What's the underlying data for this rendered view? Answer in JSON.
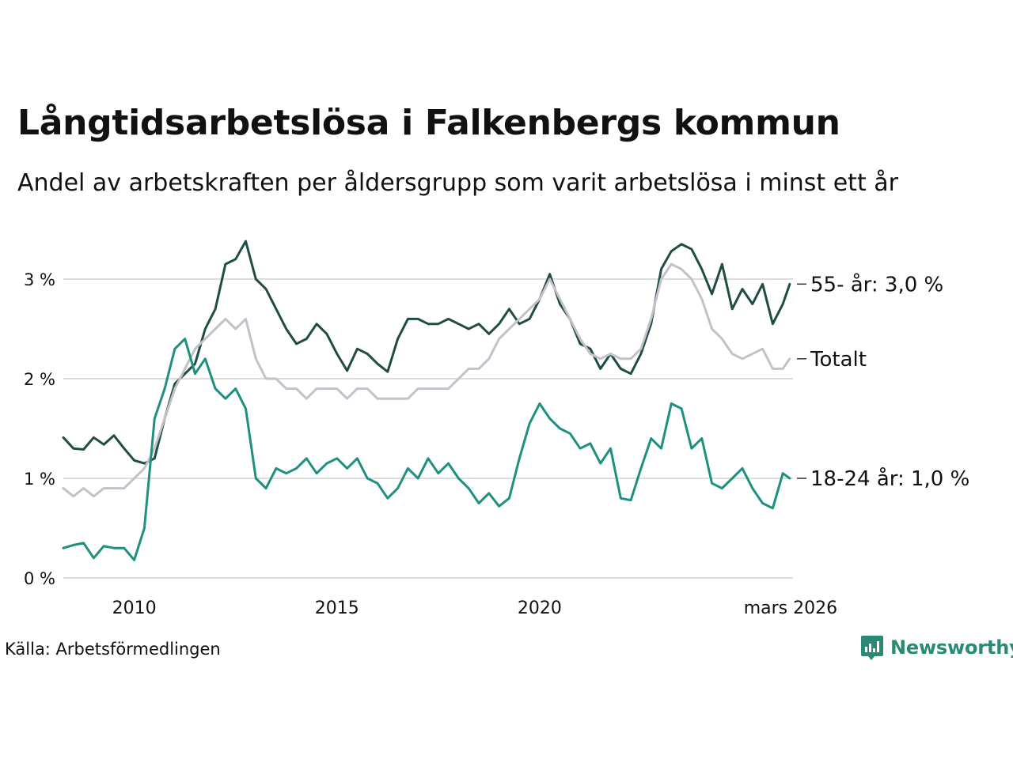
{
  "title": "Långtidsarbetslösa i Falkenbergs kommun",
  "subtitle": "Andel av arbetskraften per åldersgrupp som varit arbetslösa i minst ett år",
  "source": "Källa: Arbetsförmedlingen",
  "brand": {
    "name": "Newsworthy",
    "icon": "newsworthy-logo-icon",
    "color": "#2a8a75"
  },
  "chart_data": {
    "type": "line",
    "title": "Långtidsarbetslösa i Falkenbergs kommun",
    "xlabel": "",
    "ylabel": "",
    "xlim": [
      2008.25,
      2026.25
    ],
    "ylim": [
      0,
      3.5
    ],
    "grid": true,
    "y_ticks": [
      0,
      1,
      2,
      3
    ],
    "y_tick_labels": [
      "0 %",
      "1 %",
      "2 %",
      "3 %"
    ],
    "x_ticks": [
      2010,
      2015,
      2020,
      2026.17
    ],
    "x_tick_labels": [
      "2010",
      "2015",
      "2020",
      "mars 2026"
    ],
    "series": [
      {
        "name": "55- år",
        "end_label": "55- år: 3,0 %",
        "color": "#1f4d45",
        "points": [
          [
            2008.25,
            1.41
          ],
          [
            2008.5,
            1.3
          ],
          [
            2008.75,
            1.29
          ],
          [
            2009,
            1.41
          ],
          [
            2009.25,
            1.34
          ],
          [
            2009.5,
            1.43
          ],
          [
            2009.75,
            1.3
          ],
          [
            2010,
            1.18
          ],
          [
            2010.25,
            1.15
          ],
          [
            2010.5,
            1.2
          ],
          [
            2010.75,
            1.6
          ],
          [
            2011,
            1.95
          ],
          [
            2011.25,
            2.05
          ],
          [
            2011.5,
            2.15
          ],
          [
            2011.75,
            2.5
          ],
          [
            2012,
            2.7
          ],
          [
            2012.25,
            3.15
          ],
          [
            2012.5,
            3.2
          ],
          [
            2012.75,
            3.38
          ],
          [
            2013,
            3.0
          ],
          [
            2013.25,
            2.9
          ],
          [
            2013.5,
            2.7
          ],
          [
            2013.75,
            2.5
          ],
          [
            2014,
            2.35
          ],
          [
            2014.25,
            2.4
          ],
          [
            2014.5,
            2.55
          ],
          [
            2014.75,
            2.45
          ],
          [
            2015,
            2.25
          ],
          [
            2015.25,
            2.08
          ],
          [
            2015.5,
            2.3
          ],
          [
            2015.75,
            2.25
          ],
          [
            2016,
            2.15
          ],
          [
            2016.25,
            2.07
          ],
          [
            2016.5,
            2.4
          ],
          [
            2016.75,
            2.6
          ],
          [
            2017,
            2.6
          ],
          [
            2017.25,
            2.55
          ],
          [
            2017.5,
            2.55
          ],
          [
            2017.75,
            2.6
          ],
          [
            2018,
            2.55
          ],
          [
            2018.25,
            2.5
          ],
          [
            2018.5,
            2.55
          ],
          [
            2018.75,
            2.45
          ],
          [
            2019,
            2.55
          ],
          [
            2019.25,
            2.7
          ],
          [
            2019.5,
            2.55
          ],
          [
            2019.75,
            2.6
          ],
          [
            2020,
            2.8
          ],
          [
            2020.25,
            3.05
          ],
          [
            2020.5,
            2.75
          ],
          [
            2020.75,
            2.6
          ],
          [
            2021,
            2.35
          ],
          [
            2021.25,
            2.3
          ],
          [
            2021.5,
            2.1
          ],
          [
            2021.75,
            2.25
          ],
          [
            2022,
            2.1
          ],
          [
            2022.25,
            2.05
          ],
          [
            2022.5,
            2.25
          ],
          [
            2022.75,
            2.55
          ],
          [
            2023,
            3.1
          ],
          [
            2023.25,
            3.28
          ],
          [
            2023.5,
            3.35
          ],
          [
            2023.75,
            3.3
          ],
          [
            2024,
            3.1
          ],
          [
            2024.25,
            2.85
          ],
          [
            2024.5,
            3.15
          ],
          [
            2024.75,
            2.7
          ],
          [
            2025,
            2.9
          ],
          [
            2025.25,
            2.75
          ],
          [
            2025.5,
            2.95
          ],
          [
            2025.75,
            2.55
          ],
          [
            2026,
            2.75
          ],
          [
            2026.17,
            2.95
          ]
        ]
      },
      {
        "name": "Totalt",
        "end_label": "Totalt",
        "color": "#c5c1cb",
        "points": [
          [
            2008.25,
            0.9
          ],
          [
            2008.5,
            0.82
          ],
          [
            2008.75,
            0.9
          ],
          [
            2009,
            0.82
          ],
          [
            2009.25,
            0.9
          ],
          [
            2009.5,
            0.9
          ],
          [
            2009.75,
            0.9
          ],
          [
            2010,
            1.0
          ],
          [
            2010.25,
            1.1
          ],
          [
            2010.5,
            1.3
          ],
          [
            2010.75,
            1.6
          ],
          [
            2011,
            1.9
          ],
          [
            2011.25,
            2.1
          ],
          [
            2011.5,
            2.3
          ],
          [
            2011.75,
            2.4
          ],
          [
            2012,
            2.5
          ],
          [
            2012.25,
            2.6
          ],
          [
            2012.5,
            2.5
          ],
          [
            2012.75,
            2.6
          ],
          [
            2013,
            2.2
          ],
          [
            2013.25,
            2.0
          ],
          [
            2013.5,
            2.0
          ],
          [
            2013.75,
            1.9
          ],
          [
            2014,
            1.9
          ],
          [
            2014.25,
            1.8
          ],
          [
            2014.5,
            1.9
          ],
          [
            2014.75,
            1.9
          ],
          [
            2015,
            1.9
          ],
          [
            2015.25,
            1.8
          ],
          [
            2015.5,
            1.9
          ],
          [
            2015.75,
            1.9
          ],
          [
            2016,
            1.8
          ],
          [
            2016.25,
            1.8
          ],
          [
            2016.5,
            1.8
          ],
          [
            2016.75,
            1.8
          ],
          [
            2017,
            1.9
          ],
          [
            2017.25,
            1.9
          ],
          [
            2017.5,
            1.9
          ],
          [
            2017.75,
            1.9
          ],
          [
            2018,
            2.0
          ],
          [
            2018.25,
            2.1
          ],
          [
            2018.5,
            2.1
          ],
          [
            2018.75,
            2.2
          ],
          [
            2019,
            2.4
          ],
          [
            2019.25,
            2.5
          ],
          [
            2019.5,
            2.6
          ],
          [
            2019.75,
            2.7
          ],
          [
            2020,
            2.8
          ],
          [
            2020.25,
            3.0
          ],
          [
            2020.5,
            2.8
          ],
          [
            2020.75,
            2.6
          ],
          [
            2021,
            2.4
          ],
          [
            2021.25,
            2.25
          ],
          [
            2021.5,
            2.2
          ],
          [
            2021.75,
            2.25
          ],
          [
            2022,
            2.2
          ],
          [
            2022.25,
            2.2
          ],
          [
            2022.5,
            2.3
          ],
          [
            2022.75,
            2.6
          ],
          [
            2023,
            3.0
          ],
          [
            2023.25,
            3.15
          ],
          [
            2023.5,
            3.1
          ],
          [
            2023.75,
            3.0
          ],
          [
            2024,
            2.8
          ],
          [
            2024.25,
            2.5
          ],
          [
            2024.5,
            2.4
          ],
          [
            2024.75,
            2.25
          ],
          [
            2025,
            2.2
          ],
          [
            2025.25,
            2.25
          ],
          [
            2025.5,
            2.3
          ],
          [
            2025.75,
            2.1
          ],
          [
            2026,
            2.1
          ],
          [
            2026.17,
            2.2
          ]
        ]
      },
      {
        "name": "18-24 år",
        "end_label": "18-24 år: 1,0 %",
        "color": "#1e9080",
        "points": [
          [
            2008.25,
            0.3
          ],
          [
            2008.5,
            0.33
          ],
          [
            2008.75,
            0.35
          ],
          [
            2009,
            0.2
          ],
          [
            2009.25,
            0.32
          ],
          [
            2009.5,
            0.3
          ],
          [
            2009.75,
            0.3
          ],
          [
            2010,
            0.18
          ],
          [
            2010.25,
            0.5
          ],
          [
            2010.5,
            1.6
          ],
          [
            2010.75,
            1.9
          ],
          [
            2011,
            2.3
          ],
          [
            2011.25,
            2.4
          ],
          [
            2011.5,
            2.05
          ],
          [
            2011.75,
            2.2
          ],
          [
            2012,
            1.9
          ],
          [
            2012.25,
            1.8
          ],
          [
            2012.5,
            1.9
          ],
          [
            2012.75,
            1.7
          ],
          [
            2013,
            1.0
          ],
          [
            2013.25,
            0.9
          ],
          [
            2013.5,
            1.1
          ],
          [
            2013.75,
            1.05
          ],
          [
            2014,
            1.1
          ],
          [
            2014.25,
            1.2
          ],
          [
            2014.5,
            1.05
          ],
          [
            2014.75,
            1.15
          ],
          [
            2015,
            1.2
          ],
          [
            2015.25,
            1.1
          ],
          [
            2015.5,
            1.2
          ],
          [
            2015.75,
            1.0
          ],
          [
            2016,
            0.95
          ],
          [
            2016.25,
            0.8
          ],
          [
            2016.5,
            0.9
          ],
          [
            2016.75,
            1.1
          ],
          [
            2017,
            1.0
          ],
          [
            2017.25,
            1.2
          ],
          [
            2017.5,
            1.05
          ],
          [
            2017.75,
            1.15
          ],
          [
            2018,
            1.0
          ],
          [
            2018.25,
            0.9
          ],
          [
            2018.5,
            0.75
          ],
          [
            2018.75,
            0.85
          ],
          [
            2019,
            0.72
          ],
          [
            2019.25,
            0.8
          ],
          [
            2019.5,
            1.2
          ],
          [
            2019.75,
            1.55
          ],
          [
            2020,
            1.75
          ],
          [
            2020.25,
            1.6
          ],
          [
            2020.5,
            1.5
          ],
          [
            2020.75,
            1.45
          ],
          [
            2021,
            1.3
          ],
          [
            2021.25,
            1.35
          ],
          [
            2021.5,
            1.15
          ],
          [
            2021.75,
            1.3
          ],
          [
            2022,
            0.8
          ],
          [
            2022.25,
            0.78
          ],
          [
            2022.5,
            1.1
          ],
          [
            2022.75,
            1.4
          ],
          [
            2023,
            1.3
          ],
          [
            2023.25,
            1.75
          ],
          [
            2023.5,
            1.7
          ],
          [
            2023.75,
            1.3
          ],
          [
            2024,
            1.4
          ],
          [
            2024.25,
            0.95
          ],
          [
            2024.5,
            0.9
          ],
          [
            2024.75,
            1.0
          ],
          [
            2025,
            1.1
          ],
          [
            2025.25,
            0.9
          ],
          [
            2025.5,
            0.75
          ],
          [
            2025.75,
            0.7
          ],
          [
            2026,
            1.05
          ],
          [
            2026.17,
            1.0
          ]
        ]
      }
    ]
  }
}
